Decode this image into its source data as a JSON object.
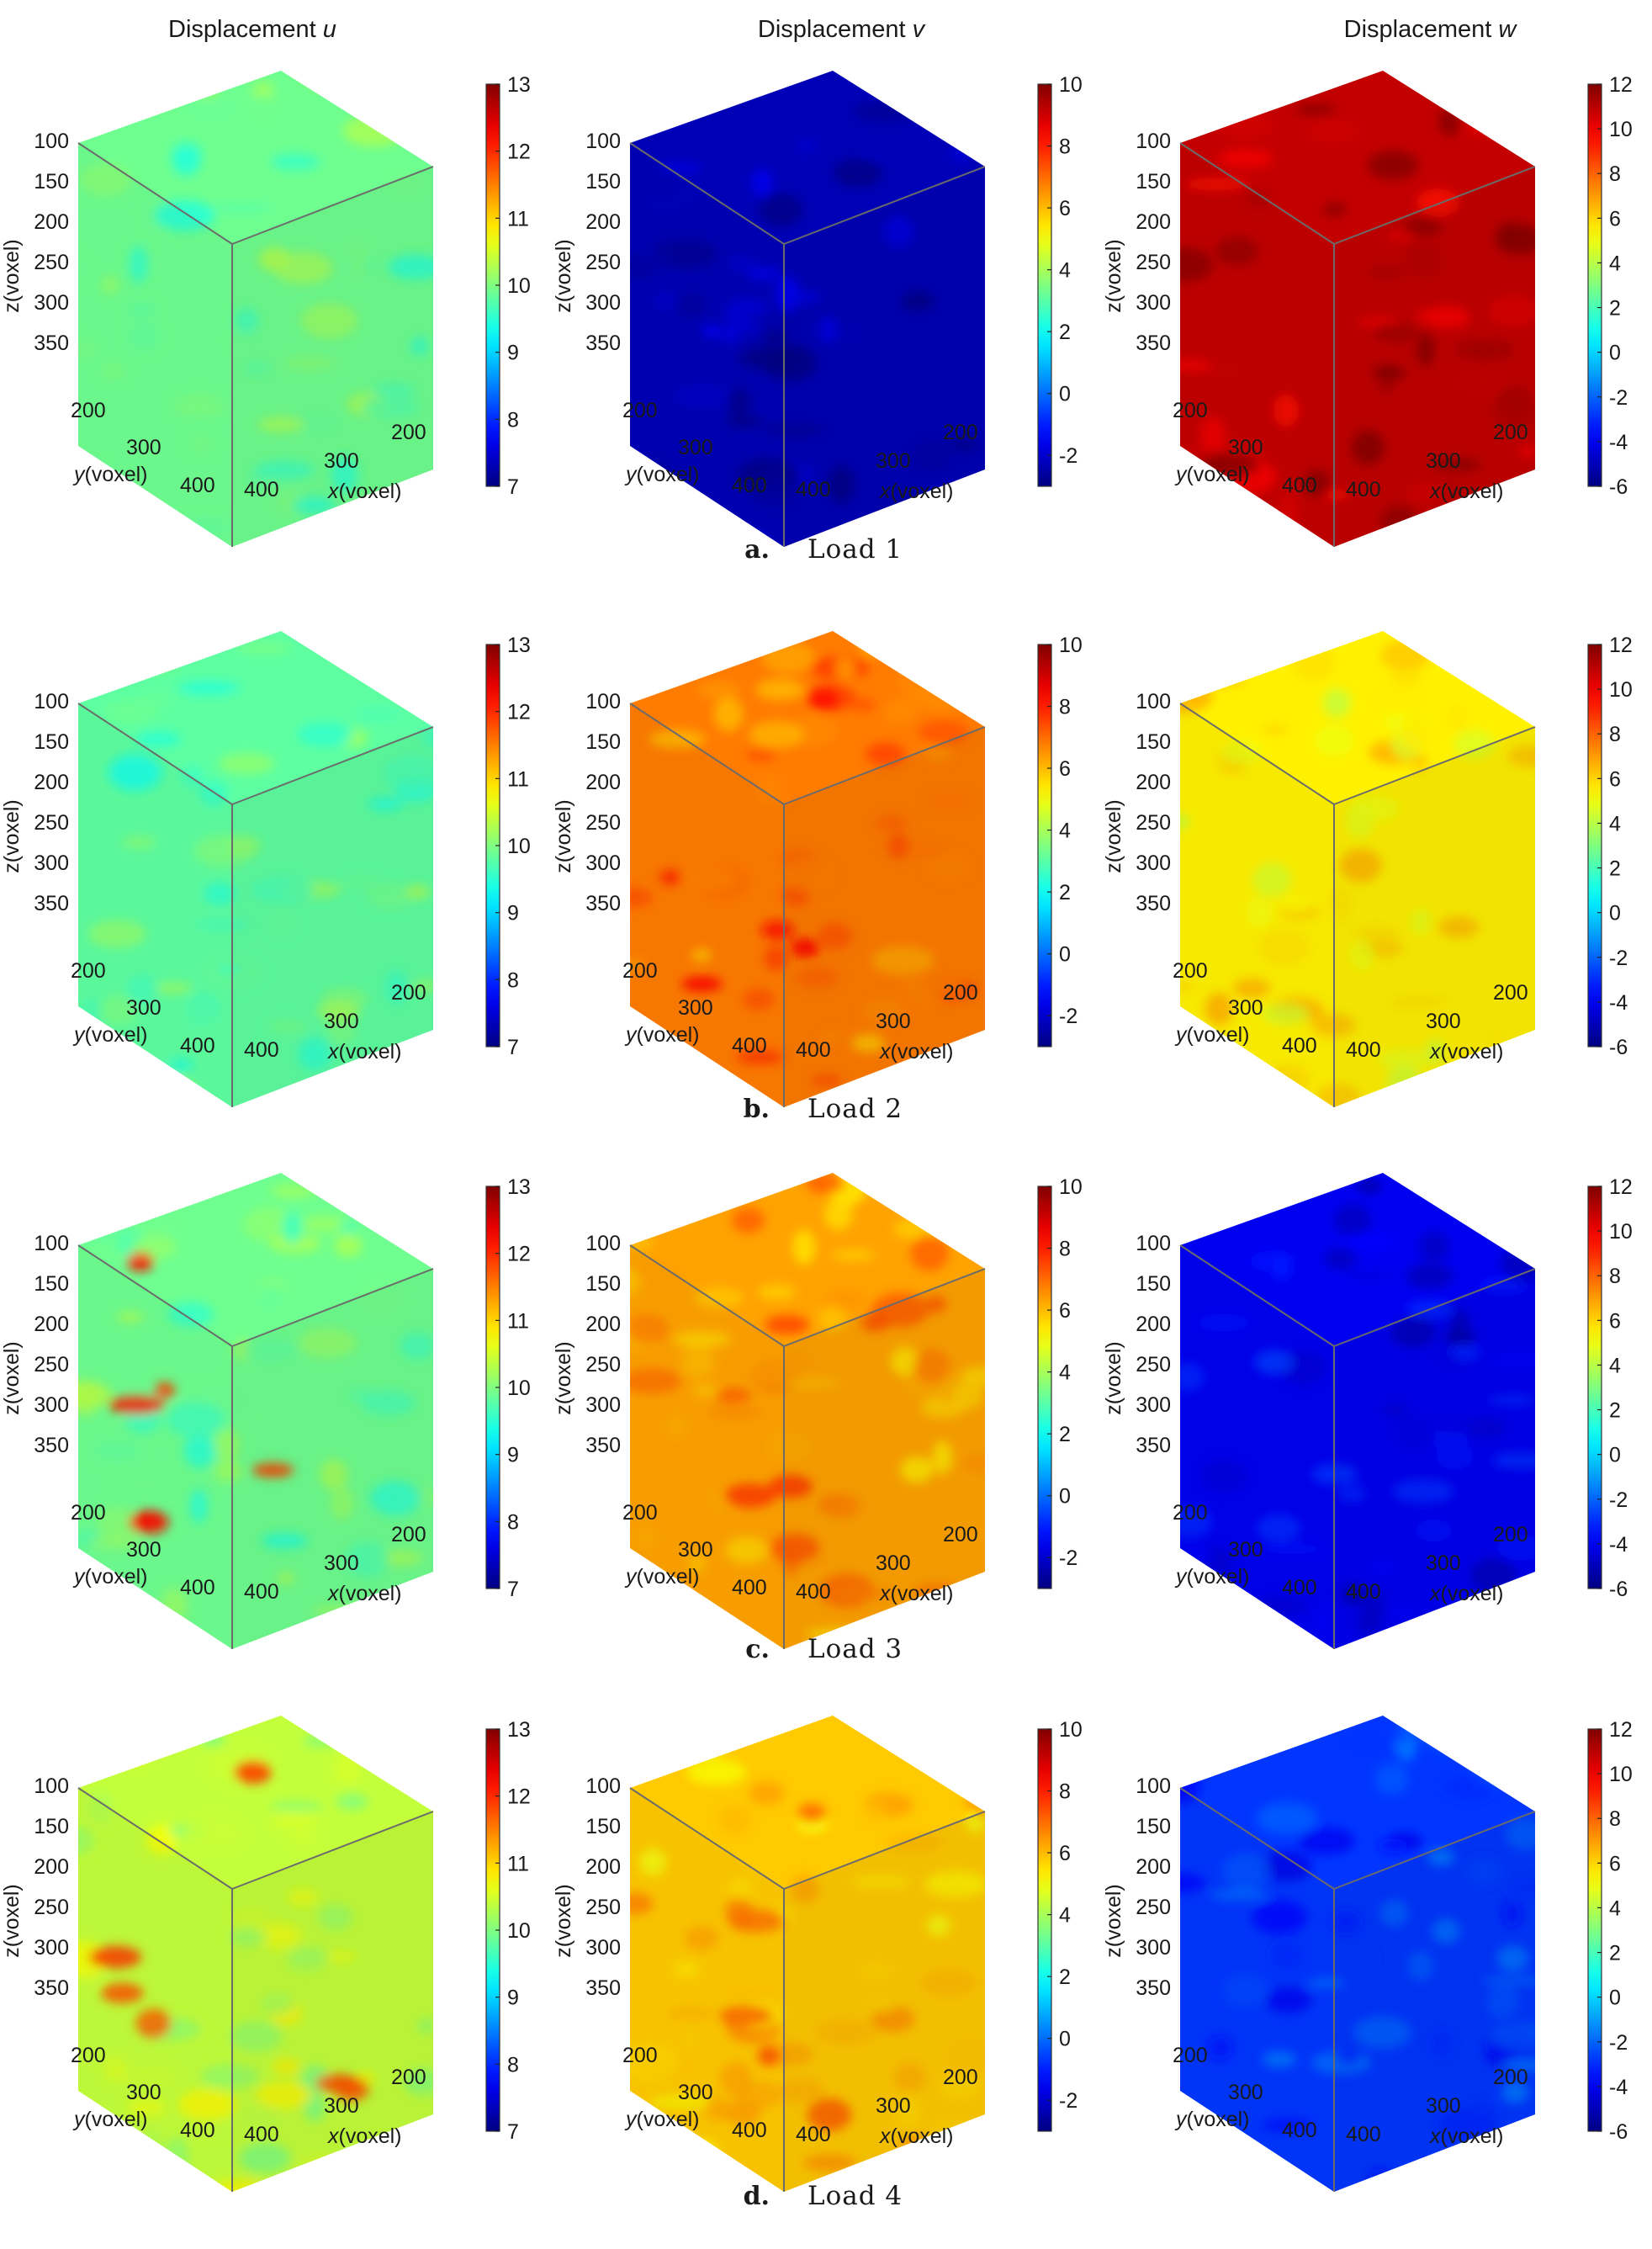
{
  "figure": {
    "column_headers": [
      {
        "prefix": "Displacement ",
        "var": "u"
      },
      {
        "prefix": "Displacement ",
        "var": "v"
      },
      {
        "prefix": "Displacement ",
        "var": "w"
      }
    ],
    "row_captions": [
      {
        "letter": "a.",
        "text": "Load 1"
      },
      {
        "letter": "b.",
        "text": "Load 2"
      },
      {
        "letter": "c.",
        "text": "Load 3"
      },
      {
        "letter": "d.",
        "text": "Load 4"
      }
    ],
    "colormap": "jet",
    "colors": {
      "background": "#ffffff",
      "cube_edge": "#6b6b6b",
      "text": "#1a1a1a"
    }
  },
  "chart_data": [
    {
      "type": "heatmap",
      "panel": "a-u",
      "row": 0,
      "col": 0,
      "xlabel_italic": "x",
      "ylabel_italic": "y",
      "zlabel": "z(voxel)",
      "axis_unit": "(voxel)",
      "z_ticks": [
        "100",
        "150",
        "200",
        "250",
        "300",
        "350"
      ],
      "y_ticks": [
        "200",
        "300",
        "400"
      ],
      "x_ticks": [
        "400",
        "300",
        "200"
      ],
      "clim": [
        7,
        13
      ],
      "colorbar_ticks": [
        "7",
        "8",
        "9",
        "10",
        "11",
        "12",
        "13"
      ],
      "approx_mean": 9.9,
      "hotspot": null
    },
    {
      "type": "heatmap",
      "panel": "a-v",
      "row": 0,
      "col": 1,
      "xlabel_italic": "x",
      "ylabel_italic": "y",
      "zlabel": "z(voxel)",
      "axis_unit": "(voxel)",
      "z_ticks": [
        "100",
        "150",
        "200",
        "250",
        "300",
        "350"
      ],
      "y_ticks": [
        "200",
        "300",
        "400"
      ],
      "x_ticks": [
        "400",
        "300",
        "200"
      ],
      "clim": [
        -3,
        10
      ],
      "colorbar_ticks": [
        "-2",
        "0",
        "2",
        "4",
        "6",
        "8",
        "10"
      ],
      "approx_mean": -2.3,
      "hotspot": null
    },
    {
      "type": "heatmap",
      "panel": "a-w",
      "row": 0,
      "col": 2,
      "xlabel_italic": "x",
      "ylabel_italic": "y",
      "zlabel": "z(voxel)",
      "axis_unit": "(voxel)",
      "z_ticks": [
        "100",
        "150",
        "200",
        "250",
        "300",
        "350"
      ],
      "y_ticks": [
        "200",
        "300",
        "400"
      ],
      "x_ticks": [
        "400",
        "300",
        "200"
      ],
      "clim": [
        -6,
        12
      ],
      "colorbar_ticks": [
        "-6",
        "-4",
        "-2",
        "0",
        "2",
        "4",
        "6",
        "8",
        "10",
        "12"
      ],
      "approx_mean": 10.8,
      "hotspot": null
    },
    {
      "type": "heatmap",
      "panel": "b-u",
      "row": 1,
      "col": 0,
      "xlabel_italic": "x",
      "ylabel_italic": "y",
      "zlabel": "z(voxel)",
      "axis_unit": "(voxel)",
      "z_ticks": [
        "100",
        "150",
        "200",
        "250",
        "300",
        "350"
      ],
      "y_ticks": [
        "200",
        "300",
        "400"
      ],
      "x_ticks": [
        "400",
        "300",
        "200"
      ],
      "clim": [
        7,
        13
      ],
      "colorbar_ticks": [
        "7",
        "8",
        "9",
        "10",
        "11",
        "12",
        "13"
      ],
      "approx_mean": 9.8,
      "hotspot": null
    },
    {
      "type": "heatmap",
      "panel": "b-v",
      "row": 1,
      "col": 1,
      "xlabel_italic": "x",
      "ylabel_italic": "y",
      "zlabel": "z(voxel)",
      "axis_unit": "(voxel)",
      "z_ticks": [
        "100",
        "150",
        "200",
        "250",
        "300",
        "350"
      ],
      "y_ticks": [
        "200",
        "300",
        "400"
      ],
      "x_ticks": [
        "400",
        "300",
        "200"
      ],
      "clim": [
        -3,
        10
      ],
      "colorbar_ticks": [
        "-2",
        "0",
        "2",
        "4",
        "6",
        "8",
        "10"
      ],
      "approx_mean": 6.8,
      "hotspot": 8.4
    },
    {
      "type": "heatmap",
      "panel": "b-w",
      "row": 1,
      "col": 2,
      "xlabel_italic": "x",
      "ylabel_italic": "y",
      "zlabel": "z(voxel)",
      "axis_unit": "(voxel)",
      "z_ticks": [
        "100",
        "150",
        "200",
        "250",
        "300",
        "350"
      ],
      "y_ticks": [
        "200",
        "300",
        "400"
      ],
      "x_ticks": [
        "400",
        "300",
        "200"
      ],
      "clim": [
        -6,
        12
      ],
      "colorbar_ticks": [
        "-6",
        "-4",
        "-2",
        "0",
        "2",
        "4",
        "6",
        "8",
        "10",
        "12"
      ],
      "approx_mean": 5.5,
      "hotspot": null
    },
    {
      "type": "heatmap",
      "panel": "c-u",
      "row": 2,
      "col": 0,
      "xlabel_italic": "x",
      "ylabel_italic": "y",
      "zlabel": "z(voxel)",
      "axis_unit": "(voxel)",
      "z_ticks": [
        "100",
        "150",
        "200",
        "250",
        "300",
        "350"
      ],
      "y_ticks": [
        "200",
        "300",
        "400"
      ],
      "x_ticks": [
        "400",
        "300",
        "200"
      ],
      "clim": [
        7,
        13
      ],
      "colorbar_ticks": [
        "7",
        "8",
        "9",
        "10",
        "11",
        "12",
        "13"
      ],
      "approx_mean": 9.9,
      "hotspot": 12.2
    },
    {
      "type": "heatmap",
      "panel": "c-v",
      "row": 2,
      "col": 1,
      "xlabel_italic": "x",
      "ylabel_italic": "y",
      "zlabel": "z(voxel)",
      "axis_unit": "(voxel)",
      "z_ticks": [
        "100",
        "150",
        "200",
        "250",
        "300",
        "350"
      ],
      "y_ticks": [
        "200",
        "300",
        "400"
      ],
      "x_ticks": [
        "400",
        "300",
        "200"
      ],
      "clim": [
        -3,
        10
      ],
      "colorbar_ticks": [
        "-2",
        "0",
        "2",
        "4",
        "6",
        "8",
        "10"
      ],
      "approx_mean": 6.3,
      "hotspot": 8.0
    },
    {
      "type": "heatmap",
      "panel": "c-w",
      "row": 2,
      "col": 2,
      "xlabel_italic": "x",
      "ylabel_italic": "y",
      "zlabel": "z(voxel)",
      "axis_unit": "(voxel)",
      "z_ticks": [
        "100",
        "150",
        "200",
        "250",
        "300",
        "350"
      ],
      "y_ticks": [
        "200",
        "300",
        "400"
      ],
      "x_ticks": [
        "400",
        "300",
        "200"
      ],
      "clim": [
        -6,
        12
      ],
      "colorbar_ticks": [
        "-6",
        "-4",
        "-2",
        "0",
        "2",
        "4",
        "6",
        "8",
        "10",
        "12"
      ],
      "approx_mean": -4.0,
      "hotspot": null
    },
    {
      "type": "heatmap",
      "panel": "d-u",
      "row": 3,
      "col": 0,
      "xlabel_italic": "x",
      "ylabel_italic": "y",
      "zlabel": "z(voxel)",
      "axis_unit": "(voxel)",
      "z_ticks": [
        "100",
        "150",
        "200",
        "250",
        "300",
        "350"
      ],
      "y_ticks": [
        "200",
        "300",
        "400"
      ],
      "x_ticks": [
        "400",
        "300",
        "200"
      ],
      "clim": [
        7,
        13
      ],
      "colorbar_ticks": [
        "7",
        "8",
        "9",
        "10",
        "11",
        "12",
        "13"
      ],
      "approx_mean": 10.4,
      "hotspot": 12.0
    },
    {
      "type": "heatmap",
      "panel": "d-v",
      "row": 3,
      "col": 1,
      "xlabel_italic": "x",
      "ylabel_italic": "y",
      "zlabel": "z(voxel)",
      "axis_unit": "(voxel)",
      "z_ticks": [
        "100",
        "150",
        "200",
        "250",
        "300",
        "350"
      ],
      "y_ticks": [
        "200",
        "300",
        "400"
      ],
      "x_ticks": [
        "400",
        "300",
        "200"
      ],
      "clim": [
        -3,
        10
      ],
      "colorbar_ticks": [
        "-2",
        "0",
        "2",
        "4",
        "6",
        "8",
        "10"
      ],
      "approx_mean": 5.8,
      "hotspot": 7.4
    },
    {
      "type": "heatmap",
      "panel": "d-w",
      "row": 3,
      "col": 2,
      "xlabel_italic": "x",
      "ylabel_italic": "y",
      "zlabel": "z(voxel)",
      "axis_unit": "(voxel)",
      "z_ticks": [
        "100",
        "150",
        "200",
        "250",
        "300",
        "350"
      ],
      "y_ticks": [
        "200",
        "300",
        "400"
      ],
      "x_ticks": [
        "400",
        "300",
        "200"
      ],
      "clim": [
        -6,
        12
      ],
      "colorbar_ticks": [
        "-6",
        "-4",
        "-2",
        "0",
        "2",
        "4",
        "6",
        "8",
        "10",
        "12"
      ],
      "approx_mean": -2.8,
      "hotspot": null
    }
  ]
}
